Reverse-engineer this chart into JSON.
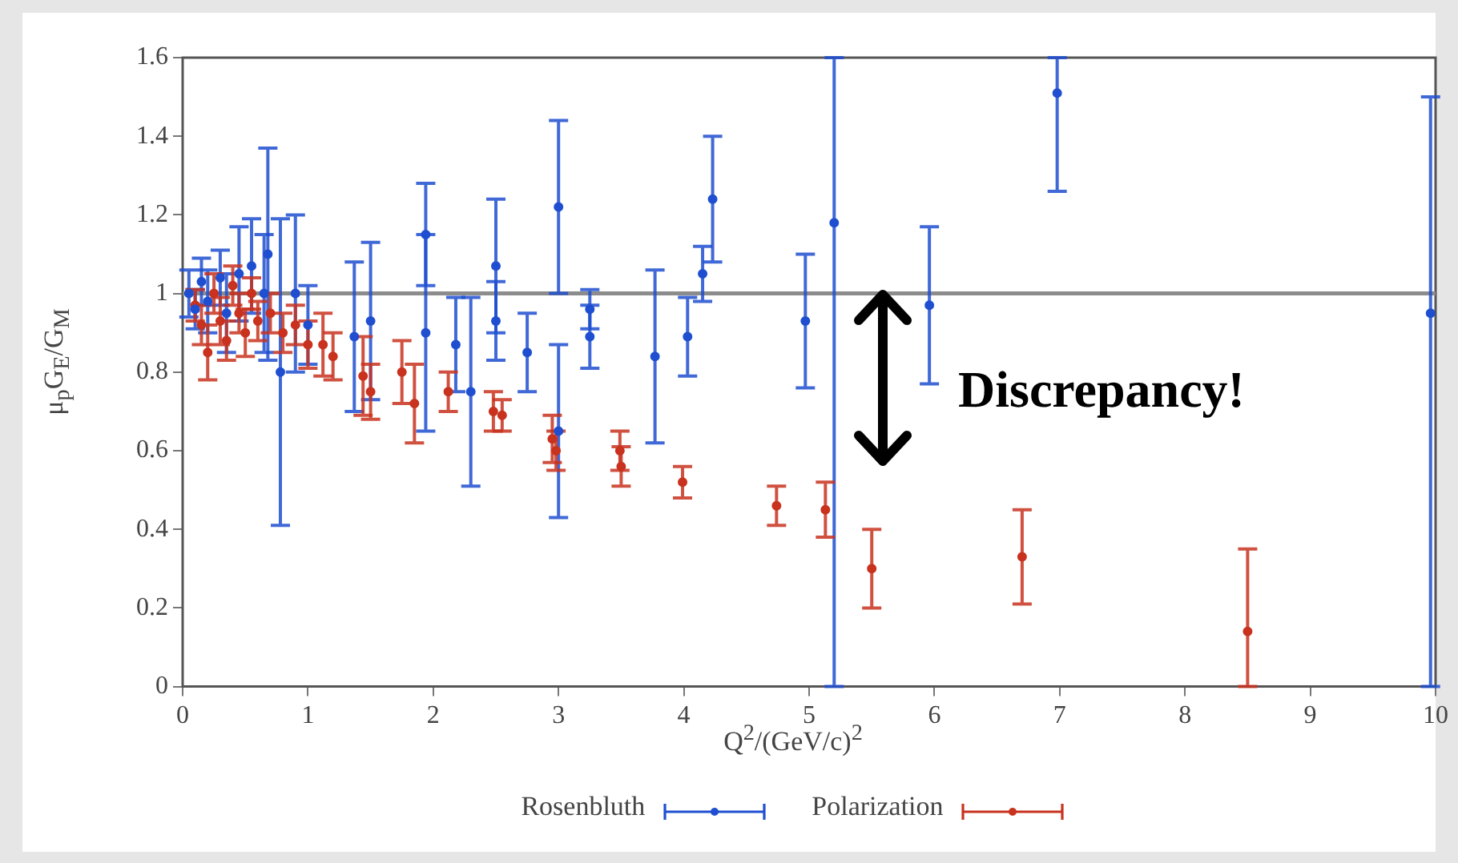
{
  "chart_data": {
    "type": "scatter",
    "xlabel": "Q$^{2}$/(GeV/c)$^{2}$",
    "ylabel": "μ$_{p}$G$_{E}$/G$_{M}$",
    "xlim": [
      0,
      10
    ],
    "ylim": [
      0,
      1.6
    ],
    "xticks": [
      0,
      1,
      2,
      3,
      4,
      5,
      6,
      7,
      8,
      9,
      10
    ],
    "yticks": [
      0,
      0.2,
      0.4,
      0.6,
      0.8,
      1,
      1.2,
      1.4,
      1.6
    ],
    "grid": false,
    "legend": "bottom",
    "marker": "circle",
    "ref_lines": [
      {
        "axis": "y",
        "value": 1,
        "color": "#8c8c8c"
      }
    ],
    "annotations": [
      "Discrepancy!"
    ],
    "series": [
      {
        "name": "Rosenbluth",
        "color": "#1f4fd0",
        "x": [
          0.05,
          0.1,
          0.15,
          0.2,
          0.3,
          0.35,
          0.45,
          0.55,
          0.65,
          0.68,
          0.78,
          0.9,
          1.0,
          1.37,
          1.5,
          1.94,
          1.94,
          2.18,
          2.3,
          2.5,
          2.5,
          2.75,
          3.0,
          3.0,
          3.25,
          3.25,
          3.77,
          4.03,
          4.15,
          4.23,
          4.97,
          5.2,
          5.96,
          6.98,
          9.96
        ],
        "values": [
          1.0,
          0.96,
          1.03,
          0.98,
          1.04,
          0.95,
          1.05,
          1.07,
          1.0,
          1.1,
          0.8,
          1.0,
          0.92,
          0.89,
          0.93,
          1.15,
          0.9,
          0.87,
          0.75,
          1.07,
          0.93,
          0.85,
          1.22,
          0.65,
          0.96,
          0.89,
          0.84,
          0.89,
          1.05,
          1.24,
          0.93,
          1.18,
          0.97,
          1.51,
          0.95
        ],
        "errors": [
          0.06,
          0.05,
          0.06,
          0.08,
          0.07,
          0.1,
          0.12,
          0.12,
          0.15,
          0.27,
          0.39,
          0.2,
          0.1,
          0.19,
          0.2,
          0.13,
          0.25,
          0.12,
          0.24,
          0.17,
          0.1,
          0.1,
          0.22,
          0.22,
          0.05,
          0.08,
          0.22,
          0.1,
          0.07,
          0.16,
          0.17,
          [
            0,
            1.6
          ],
          0.2,
          [
            1.26,
            1.6
          ],
          [
            0,
            1.5
          ]
        ]
      },
      {
        "name": "Polarization",
        "color": "#c8321e",
        "x": [
          0.1,
          0.15,
          0.2,
          0.25,
          0.3,
          0.35,
          0.4,
          0.45,
          0.5,
          0.55,
          0.6,
          0.7,
          0.8,
          0.9,
          1.0,
          1.12,
          1.2,
          1.44,
          1.5,
          1.75,
          1.85,
          2.12,
          2.48,
          2.55,
          2.95,
          2.98,
          3.49,
          3.5,
          3.99,
          4.74,
          5.13,
          5.5,
          6.7,
          8.5
        ],
        "values": [
          0.97,
          0.92,
          0.85,
          1.0,
          0.93,
          0.88,
          1.02,
          0.95,
          0.9,
          1.0,
          0.93,
          0.95,
          0.9,
          0.92,
          0.87,
          0.87,
          0.84,
          0.79,
          0.75,
          0.8,
          0.72,
          0.75,
          0.7,
          0.69,
          0.63,
          0.6,
          0.6,
          0.56,
          0.52,
          0.46,
          0.45,
          0.3,
          0.33,
          0.14
        ],
        "errors": [
          0.04,
          0.05,
          0.07,
          0.05,
          0.06,
          0.05,
          0.05,
          0.05,
          0.06,
          0.04,
          0.05,
          0.05,
          0.05,
          0.05,
          0.06,
          0.08,
          0.06,
          0.1,
          0.07,
          0.08,
          0.1,
          0.05,
          0.05,
          0.04,
          0.06,
          0.05,
          0.05,
          0.05,
          0.04,
          0.05,
          0.07,
          0.1,
          0.12,
          [
            0,
            0.35
          ]
        ]
      }
    ]
  }
}
